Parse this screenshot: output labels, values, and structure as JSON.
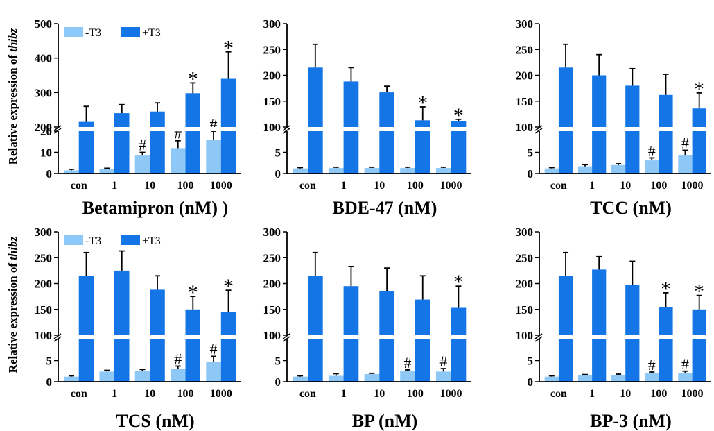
{
  "colors": {
    "minus_t3": "#8ec8f7",
    "plus_t3": "#1476e6",
    "error_bar": "#000000",
    "break_band": "#ffffff"
  },
  "y_axis_title_prefix": "Relative expression of ",
  "y_axis_title_gene": "thibz",
  "chart_data": [
    {
      "type": "bar",
      "xlabel": "Betamipron (nM) )",
      "ylabel": "Relative expression of thibz",
      "categories": [
        "con",
        "1",
        "10",
        "100",
        "1000"
      ],
      "series": [
        {
          "name": "-T3",
          "values": [
            1.5,
            2,
            8.5,
            12,
            16
          ],
          "errors": [
            0.5,
            0.5,
            1.5,
            3.5,
            4
          ],
          "marks": [
            "",
            "",
            "#",
            "#",
            "#"
          ]
        },
        {
          "name": "+T3",
          "values": [
            215,
            240,
            245,
            298,
            340
          ],
          "errors": [
            45,
            25,
            25,
            30,
            78
          ],
          "marks": [
            "",
            "",
            "",
            "*",
            "*"
          ]
        }
      ],
      "axis_break": true,
      "lower_ylim": [
        0,
        20
      ],
      "lower_ticks": [
        "0",
        "10",
        "20"
      ],
      "upper_ylim": [
        200,
        500
      ],
      "upper_ticks": [
        "200",
        "300",
        "400",
        "500"
      ],
      "legend": {
        "items": [
          "-T3",
          "+T3"
        ],
        "placement": "top-left"
      }
    },
    {
      "type": "bar",
      "xlabel": "BDE-47 (nM)",
      "categories": [
        "con",
        "1",
        "10",
        "100",
        "1000"
      ],
      "series": [
        {
          "name": "-T3",
          "values": [
            1.2,
            1.3,
            1.3,
            1.3,
            1.3
          ],
          "errors": [
            0.2,
            0.2,
            0.2,
            0.2,
            0.2
          ],
          "marks": [
            "",
            "",
            "",
            "",
            ""
          ]
        },
        {
          "name": "+T3",
          "values": [
            215,
            188,
            167,
            113,
            111
          ],
          "errors": [
            45,
            27,
            12,
            26,
            4
          ],
          "marks": [
            "",
            "",
            "",
            "*",
            "*"
          ]
        }
      ],
      "axis_break": true,
      "lower_ylim": [
        0,
        10
      ],
      "lower_ticks": [
        "0",
        "5"
      ],
      "upper_ylim": [
        100,
        300
      ],
      "upper_ticks": [
        "100",
        "150",
        "200",
        "250",
        "300"
      ]
    },
    {
      "type": "bar",
      "xlabel": "TCC (nM)",
      "categories": [
        "con",
        "1",
        "10",
        "100",
        "1000"
      ],
      "series": [
        {
          "name": "-T3",
          "values": [
            1.2,
            1.7,
            2,
            3.1,
            4.3
          ],
          "errors": [
            0.2,
            0.4,
            0.3,
            0.6,
            1.2
          ],
          "marks": [
            "",
            "",
            "",
            "#",
            "#"
          ]
        },
        {
          "name": "+T3",
          "values": [
            215,
            200,
            180,
            162,
            136
          ],
          "errors": [
            45,
            40,
            33,
            40,
            30
          ],
          "marks": [
            "",
            "",
            "",
            "",
            "*"
          ]
        }
      ],
      "axis_break": true,
      "lower_ylim": [
        0,
        10
      ],
      "lower_ticks": [
        "0",
        "5"
      ],
      "upper_ylim": [
        100,
        300
      ],
      "upper_ticks": [
        "100",
        "150",
        "200",
        "250",
        "300"
      ]
    },
    {
      "type": "bar",
      "xlabel": "TCS (nM)",
      "ylabel": "Relative expression of thibz",
      "categories": [
        "con",
        "1",
        "10",
        "100",
        "1000"
      ],
      "series": [
        {
          "name": "-T3",
          "values": [
            1.2,
            2.4,
            2.6,
            3.1,
            4.6
          ],
          "errors": [
            0.2,
            0.3,
            0.3,
            0.6,
            1.4
          ],
          "marks": [
            "",
            "",
            "",
            "#",
            "#"
          ]
        },
        {
          "name": "+T3",
          "values": [
            215,
            225,
            188,
            150,
            145
          ],
          "errors": [
            45,
            38,
            27,
            25,
            42
          ],
          "marks": [
            "",
            "",
            "",
            "*",
            "*"
          ]
        }
      ],
      "axis_break": true,
      "lower_ylim": [
        0,
        10
      ],
      "lower_ticks": [
        "0",
        "5"
      ],
      "upper_ylim": [
        100,
        300
      ],
      "upper_ticks": [
        "100",
        "150",
        "200",
        "250",
        "300"
      ],
      "legend": {
        "items": [
          "-T3",
          "+T3"
        ],
        "placement": "top-left"
      }
    },
    {
      "type": "bar",
      "xlabel": "BP (nM)",
      "categories": [
        "con",
        "1",
        "10",
        "100",
        "1000"
      ],
      "series": [
        {
          "name": "-T3",
          "values": [
            1.2,
            1.4,
            1.8,
            2.5,
            2.4
          ],
          "errors": [
            0.2,
            0.5,
            0.2,
            0.3,
            0.7
          ],
          "marks": [
            "",
            "",
            "",
            "#",
            "#"
          ]
        },
        {
          "name": "+T3",
          "values": [
            215,
            195,
            185,
            169,
            153
          ],
          "errors": [
            45,
            38,
            45,
            46,
            42
          ],
          "marks": [
            "",
            "",
            "",
            "",
            "*"
          ]
        }
      ],
      "axis_break": true,
      "lower_ylim": [
        0,
        10
      ],
      "lower_ticks": [
        "0",
        "5"
      ],
      "upper_ylim": [
        100,
        300
      ],
      "upper_ticks": [
        "100",
        "150",
        "200",
        "250",
        "300"
      ]
    },
    {
      "type": "bar",
      "xlabel": "BP-3 (nM)",
      "categories": [
        "con",
        "1",
        "10",
        "100",
        "1000"
      ],
      "series": [
        {
          "name": "-T3",
          "values": [
            1.2,
            1.5,
            1.6,
            2,
            2.1
          ],
          "errors": [
            0.2,
            0.2,
            0.2,
            0.3,
            0.4
          ],
          "marks": [
            "",
            "",
            "",
            "#",
            "#"
          ]
        },
        {
          "name": "+T3",
          "values": [
            215,
            227,
            198,
            154,
            150
          ],
          "errors": [
            45,
            25,
            45,
            28,
            27
          ],
          "marks": [
            "",
            "",
            "",
            "*",
            "*"
          ]
        }
      ],
      "axis_break": true,
      "lower_ylim": [
        0,
        10
      ],
      "lower_ticks": [
        "0",
        "5"
      ],
      "upper_ylim": [
        100,
        300
      ],
      "upper_ticks": [
        "100",
        "150",
        "200",
        "250",
        "300"
      ]
    }
  ]
}
